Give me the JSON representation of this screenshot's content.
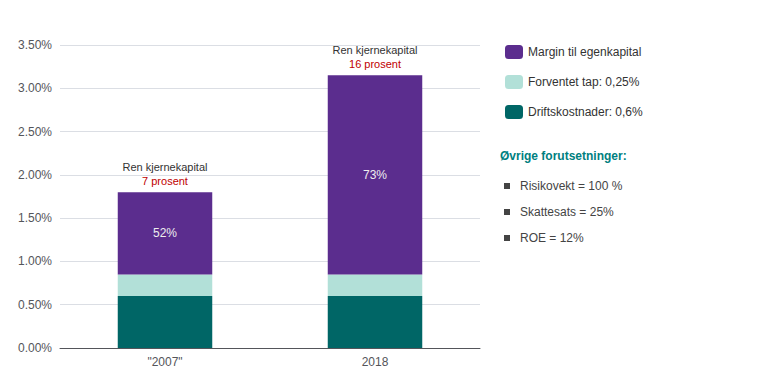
{
  "chart_data": {
    "type": "bar",
    "stacked": true,
    "categories": [
      "\"2007\"",
      "2018"
    ],
    "series": [
      {
        "name": "Driftskostnader: 0,6%",
        "color": "#006666",
        "values": [
          0.006,
          0.006
        ]
      },
      {
        "name": "Forventet tap: 0,25%",
        "color": "#b2e0d8",
        "values": [
          0.0025,
          0.0025
        ]
      },
      {
        "name": "Margin til egenkapital",
        "color": "#5b2d8e",
        "values": [
          0.0095,
          0.023
        ],
        "labels": [
          "52%",
          "73%"
        ]
      }
    ],
    "annotations": [
      {
        "category": "\"2007\"",
        "lines": [
          {
            "text": "Ren kjernekapital"
          },
          {
            "text": "7 prosent",
            "color": "#c00000"
          }
        ]
      },
      {
        "category": "2018",
        "lines": [
          {
            "text": "Ren kjernekapital"
          },
          {
            "text": "16 prosent",
            "color": "#c00000"
          }
        ]
      }
    ],
    "notes": {
      "title": "Øvrige forutsetninger:",
      "color": "#008080",
      "items": [
        "Risikovekt = 100 %",
        "Skattesats = 25%",
        "ROE = 12%"
      ]
    },
    "ylim": [
      0,
      0.035
    ],
    "yticks": [
      {
        "value": 0.0,
        "label": "0.00%"
      },
      {
        "value": 0.005,
        "label": "0.50%"
      },
      {
        "value": 0.01,
        "label": "1.00%"
      },
      {
        "value": 0.015,
        "label": "1.50%"
      },
      {
        "value": 0.02,
        "label": "2.00%"
      },
      {
        "value": 0.025,
        "label": "2.50%"
      },
      {
        "value": 0.03,
        "label": "3.00%"
      },
      {
        "value": 0.035,
        "label": "3.50%"
      }
    ],
    "grid": true,
    "legend": "right"
  }
}
